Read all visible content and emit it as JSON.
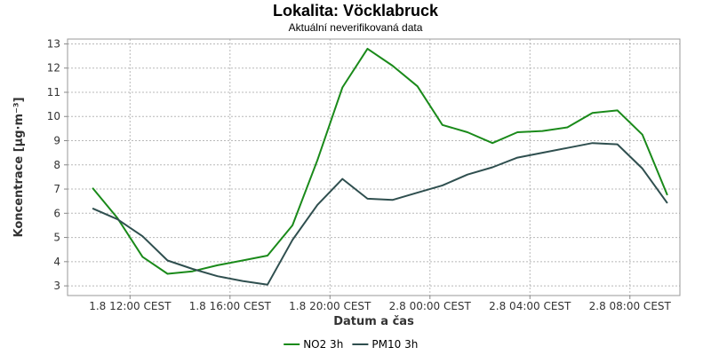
{
  "chart_data": {
    "type": "line",
    "title": "Lokalita: Vöcklabruck",
    "subtitle": "Aktuální neverifikovaná data",
    "xlabel": "Datum a čas",
    "ylabel": "Koncentrace [µg·m⁻³]",
    "x": [
      "1.8 10:30",
      "1.8 11:30",
      "1.8 12:30",
      "1.8 13:30",
      "1.8 14:30",
      "1.8 15:30",
      "1.8 16:30",
      "1.8 17:30",
      "1.8 18:30",
      "1.8 19:30",
      "1.8 20:30",
      "1.8 21:30",
      "1.8 22:30",
      "1.8 23:30",
      "2.8 00:30",
      "2.8 01:30",
      "2.8 02:30",
      "2.8 03:30",
      "2.8 04:30",
      "2.8 05:30",
      "2.8 06:30",
      "2.8 07:30",
      "2.8 08:30",
      "2.8 09:30"
    ],
    "x_ticks": [
      "1.8 12:00 CEST",
      "1.8 16:00 CEST",
      "1.8 20:00 CEST",
      "2.8 00:00 CEST",
      "2.8 04:00 CEST",
      "2.8 08:00 CEST"
    ],
    "x_tick_hours": [
      12,
      16,
      20,
      24,
      28,
      32
    ],
    "x_hours": [
      10.5,
      11.5,
      12.5,
      13.5,
      14.5,
      15.5,
      16.5,
      17.5,
      18.5,
      19.5,
      20.5,
      21.5,
      22.5,
      23.5,
      24.5,
      25.5,
      26.5,
      27.5,
      28.5,
      29.5,
      30.5,
      31.5,
      32.5,
      33.5
    ],
    "xlim": [
      9.5,
      34
    ],
    "ylim": [
      2.6,
      13.2
    ],
    "y_ticks": [
      3,
      4,
      5,
      6,
      7,
      8,
      9,
      10,
      11,
      12,
      13
    ],
    "grid": true,
    "legend_position": "bottom-center",
    "series": [
      {
        "name": "NO2 3h",
        "color": "#1a8a1a",
        "values": [
          7.05,
          5.8,
          4.2,
          3.5,
          3.6,
          3.85,
          4.05,
          4.25,
          5.5,
          8.2,
          11.2,
          12.8,
          12.1,
          11.25,
          9.65,
          9.35,
          8.9,
          9.35,
          9.4,
          9.55,
          10.15,
          10.25,
          9.25,
          6.75
        ]
      },
      {
        "name": "PM10 3h",
        "color": "#2f4f4f",
        "values": [
          6.2,
          5.75,
          5.05,
          4.05,
          3.7,
          3.4,
          3.2,
          3.05,
          4.9,
          6.35,
          7.42,
          6.6,
          6.55,
          6.85,
          7.15,
          7.6,
          7.9,
          8.3,
          8.5,
          8.7,
          8.9,
          8.85,
          7.85,
          6.42
        ]
      }
    ]
  }
}
